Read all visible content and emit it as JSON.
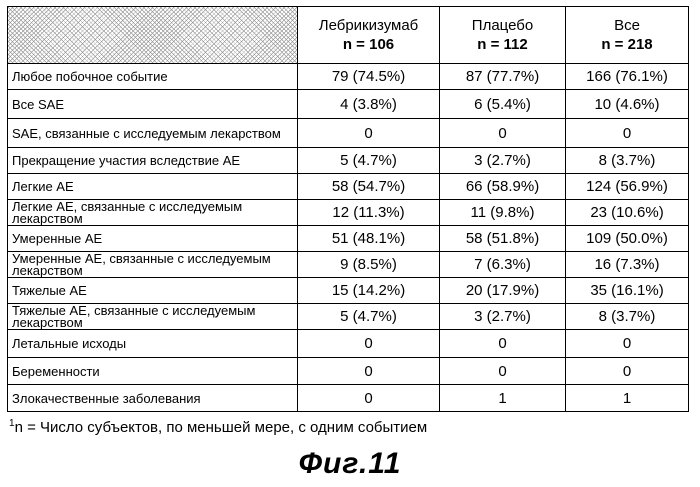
{
  "columns": [
    {
      "name": "Лебрикизумаб",
      "n": "n = 106"
    },
    {
      "name": "Плацебо",
      "n": "n = 112"
    },
    {
      "name": "Все",
      "n": "n = 218"
    }
  ],
  "rows": [
    {
      "label": [
        "Любое побочное событие"
      ],
      "values": [
        "79 (74.5%)",
        "87 (77.7%)",
        "166 (76.1%)"
      ]
    },
    {
      "label": [
        "Все SAE"
      ],
      "values": [
        "4 (3.8%)",
        "6 (5.4%)",
        "10 (4.6%)"
      ]
    },
    {
      "label": [
        "SAE, связанные с исследуемым лекарством"
      ],
      "values": [
        "0",
        "0",
        "0"
      ]
    },
    {
      "label": [
        "Прекращение участия вследствие AE"
      ],
      "values": [
        "5 (4.7%)",
        "3 (2.7%)",
        "8 (3.7%)"
      ]
    },
    {
      "label": [
        "Легкие AE"
      ],
      "values": [
        "58 (54.7%)",
        "66 (58.9%)",
        "124 (56.9%)"
      ]
    },
    {
      "label": [
        "Легкие AE, связанные с исследуемым",
        "лекарством"
      ],
      "values": [
        "12 (11.3%)",
        "11 (9.8%)",
        "23 (10.6%)"
      ]
    },
    {
      "label": [
        "Умеренные AE"
      ],
      "values": [
        "51 (48.1%)",
        "58 (51.8%)",
        "109 (50.0%)"
      ]
    },
    {
      "label": [
        "Умеренные AE, связанные с исследуемым",
        "лекарством"
      ],
      "values": [
        "9 (8.5%)",
        "7 (6.3%)",
        "16 (7.3%)"
      ]
    },
    {
      "label": [
        "Тяжелые AE"
      ],
      "values": [
        "15 (14.2%)",
        "20 (17.9%)",
        "35 (16.1%)"
      ]
    },
    {
      "label": [
        "Тяжелые AE, связанные с исследуемым",
        "лекарством"
      ],
      "values": [
        "5 (4.7%)",
        "3 (2.7%)",
        "8 (3.7%)"
      ]
    },
    {
      "label": [
        "Летальные исходы"
      ],
      "values": [
        "0",
        "0",
        "0"
      ]
    },
    {
      "label": [
        "Беременности"
      ],
      "values": [
        "0",
        "0",
        "0"
      ]
    },
    {
      "label": [
        "Злокачественные заболевания"
      ],
      "values": [
        "0",
        "1",
        "1"
      ]
    }
  ],
  "footnote": {
    "sup": "1",
    "n": "n = ",
    "text": " Число субъектов, по меньшей мере, с одним событием"
  },
  "figure_caption": "Фиг.11"
}
